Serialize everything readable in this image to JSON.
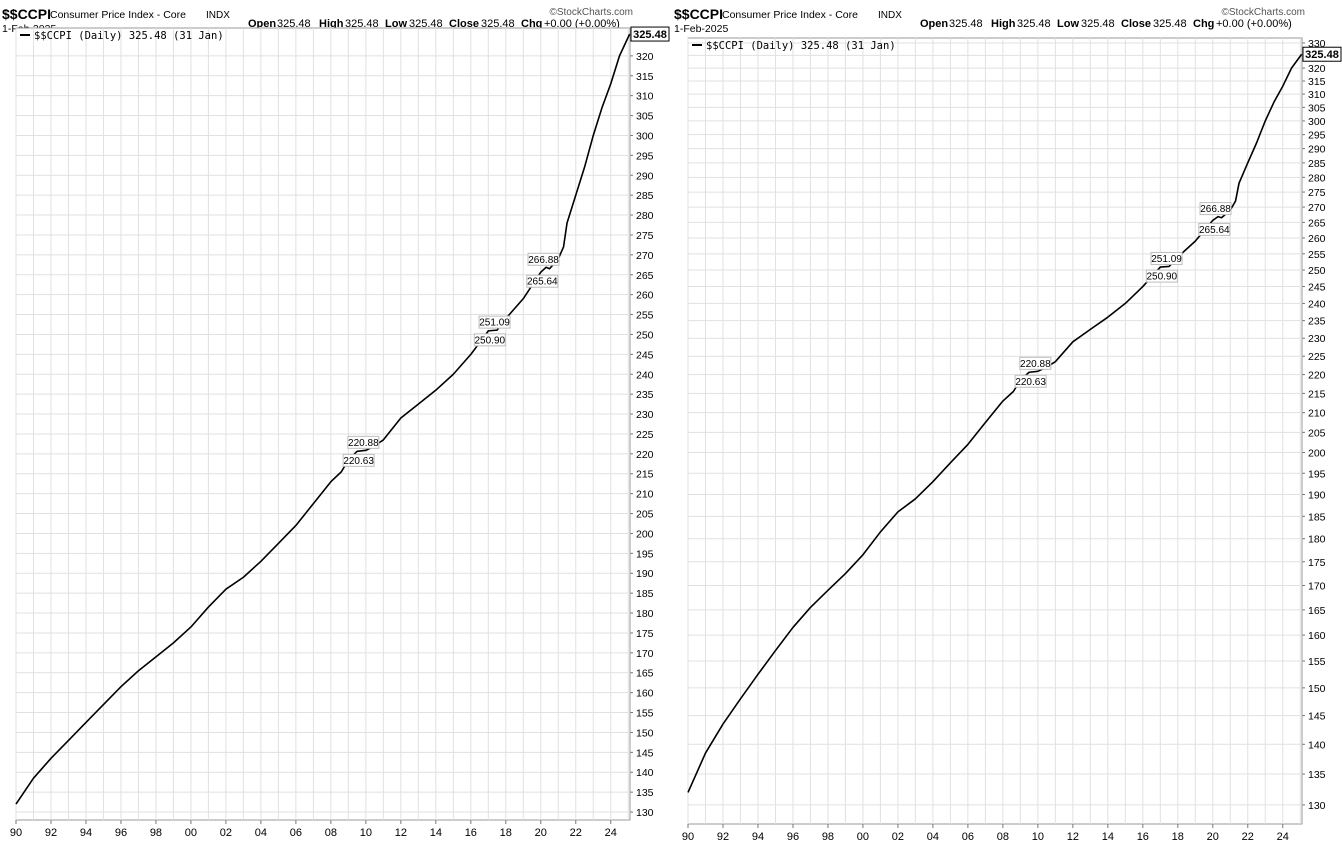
{
  "charts": [
    {
      "symbol": "$$CCPI",
      "name": "Consumer Price Index - Core",
      "exchange": "INDX",
      "date": "1-Feb-2025",
      "watermark": "©StockCharts.com",
      "ohlc": {
        "open_label": "Open",
        "open": "325.48",
        "high_label": "High",
        "high": "325.48",
        "low_label": "Low",
        "low": "325.48",
        "close_label": "Close",
        "close": "325.48",
        "chg_label": "Chg",
        "chg": "+0.00 (+0.00%)"
      },
      "legend": "$$CCPI (Daily) 325.48 (31 Jan)",
      "last_price": "325.48"
    },
    {
      "symbol": "$$CCPI",
      "name": "Consumer Price Index - Core",
      "exchange": "INDX",
      "date": "1-Feb-2025",
      "watermark": "©StockCharts.com",
      "ohlc": {
        "open_label": "Open",
        "open": "325.48",
        "high_label": "High",
        "high": "325.48",
        "low_label": "Low",
        "low": "325.48",
        "close_label": "Close",
        "close": "325.48",
        "chg_label": "Chg",
        "chg": "+0.00 (+0.00%)"
      },
      "legend": "$$CCPI (Daily) 325.48 (31 Jan)",
      "last_price": "325.48"
    }
  ],
  "chart_data": [
    {
      "type": "line",
      "scale": "linear",
      "title": "$$CCPI Consumer Price Index - Core",
      "xlim": [
        1990,
        2025.1
      ],
      "ylim": [
        128,
        327
      ],
      "x_ticks": [
        1990,
        1992,
        1994,
        1996,
        1998,
        2000,
        2002,
        2004,
        2006,
        2008,
        2010,
        2012,
        2014,
        2016,
        2018,
        2020,
        2022,
        2024
      ],
      "x_tick_labels": [
        "90",
        "92",
        "94",
        "96",
        "98",
        "00",
        "02",
        "04",
        "06",
        "08",
        "10",
        "12",
        "14",
        "16",
        "18",
        "20",
        "22",
        "24"
      ],
      "y_ticks": [
        130,
        135,
        140,
        145,
        150,
        155,
        160,
        165,
        170,
        175,
        180,
        185,
        190,
        195,
        200,
        205,
        210,
        215,
        220,
        225,
        230,
        235,
        240,
        245,
        250,
        255,
        260,
        265,
        270,
        275,
        280,
        285,
        290,
        295,
        300,
        305,
        310,
        315,
        320
      ],
      "grid": true,
      "legend_position": "top-left",
      "series": [
        {
          "name": "$$CCPI (Daily)",
          "color": "#000000",
          "x": [
            1990.0,
            1991.0,
            1992.0,
            1993.0,
            1994.0,
            1995.0,
            1996.0,
            1997.0,
            1998.0,
            1999.0,
            2000.0,
            2001.0,
            2002.0,
            2003.0,
            2004.0,
            2005.0,
            2006.0,
            2007.0,
            2008.0,
            2008.6,
            2009.0,
            2009.5,
            2010.0,
            2010.5,
            2011.0,
            2012.0,
            2013.0,
            2014.0,
            2015.0,
            2016.0,
            2016.6,
            2017.0,
            2017.5,
            2018.0,
            2019.0,
            2019.6,
            2020.0,
            2020.3,
            2020.5,
            2021.0,
            2021.3,
            2021.5,
            2022.0,
            2022.5,
            2023.0,
            2023.5,
            2024.0,
            2024.5,
            2025.08
          ],
          "y": [
            132.0,
            138.5,
            143.5,
            148.0,
            152.5,
            157.0,
            161.5,
            165.5,
            169.0,
            172.5,
            176.5,
            181.5,
            186.0,
            189.0,
            193.0,
            197.5,
            202.0,
            207.5,
            213.0,
            215.5,
            218.5,
            220.63,
            220.88,
            222.0,
            223.5,
            229.0,
            232.5,
            236.0,
            240.0,
            245.0,
            248.5,
            250.9,
            251.09,
            254.0,
            259.0,
            263.0,
            265.64,
            266.88,
            266.5,
            269.0,
            272.0,
            278.0,
            285.0,
            292.0,
            300.0,
            307.0,
            313.0,
            320.0,
            325.48
          ]
        }
      ],
      "annotations": [
        "220.88",
        "220.63",
        "251.09",
        "250.90",
        "266.88",
        "265.64"
      ],
      "last_value_label": "325.48"
    },
    {
      "type": "line",
      "scale": "log",
      "title": "$$CCPI Consumer Price Index - Core",
      "xlim": [
        1990,
        2025.1
      ],
      "ylim": [
        127,
        332
      ],
      "x_ticks": [
        1990,
        1992,
        1994,
        1996,
        1998,
        2000,
        2002,
        2004,
        2006,
        2008,
        2010,
        2012,
        2014,
        2016,
        2018,
        2020,
        2022,
        2024
      ],
      "x_tick_labels": [
        "90",
        "92",
        "94",
        "96",
        "98",
        "00",
        "02",
        "04",
        "06",
        "08",
        "10",
        "12",
        "14",
        "16",
        "18",
        "20",
        "22",
        "24"
      ],
      "y_ticks": [
        130,
        135,
        140,
        145,
        150,
        155,
        160,
        165,
        170,
        175,
        180,
        185,
        190,
        195,
        200,
        205,
        210,
        215,
        220,
        225,
        230,
        235,
        240,
        245,
        250,
        255,
        260,
        265,
        270,
        275,
        280,
        285,
        290,
        295,
        300,
        305,
        310,
        315,
        320,
        325,
        330
      ],
      "grid": true,
      "legend_position": "top-left",
      "series": [
        {
          "name": "$$CCPI (Daily)",
          "color": "#000000",
          "x": [
            1990.0,
            1991.0,
            1992.0,
            1993.0,
            1994.0,
            1995.0,
            1996.0,
            1997.0,
            1998.0,
            1999.0,
            2000.0,
            2001.0,
            2002.0,
            2003.0,
            2004.0,
            2005.0,
            2006.0,
            2007.0,
            2008.0,
            2008.6,
            2009.0,
            2009.5,
            2010.0,
            2010.5,
            2011.0,
            2012.0,
            2013.0,
            2014.0,
            2015.0,
            2016.0,
            2016.6,
            2017.0,
            2017.5,
            2018.0,
            2019.0,
            2019.6,
            2020.0,
            2020.3,
            2020.5,
            2021.0,
            2021.3,
            2021.5,
            2022.0,
            2022.5,
            2023.0,
            2023.5,
            2024.0,
            2024.5,
            2025.08
          ],
          "y": [
            132.0,
            138.5,
            143.5,
            148.0,
            152.5,
            157.0,
            161.5,
            165.5,
            169.0,
            172.5,
            176.5,
            181.5,
            186.0,
            189.0,
            193.0,
            197.5,
            202.0,
            207.5,
            213.0,
            215.5,
            218.5,
            220.63,
            220.88,
            222.0,
            223.5,
            229.0,
            232.5,
            236.0,
            240.0,
            245.0,
            248.5,
            250.9,
            251.09,
            254.0,
            259.0,
            263.0,
            265.64,
            266.88,
            266.5,
            269.0,
            272.0,
            278.0,
            285.0,
            292.0,
            300.0,
            307.0,
            313.0,
            320.0,
            325.48
          ]
        }
      ],
      "annotations": [
        "220.88",
        "220.63",
        "251.09",
        "250.90",
        "266.88",
        "265.64"
      ],
      "last_value_label": "325.48"
    }
  ]
}
